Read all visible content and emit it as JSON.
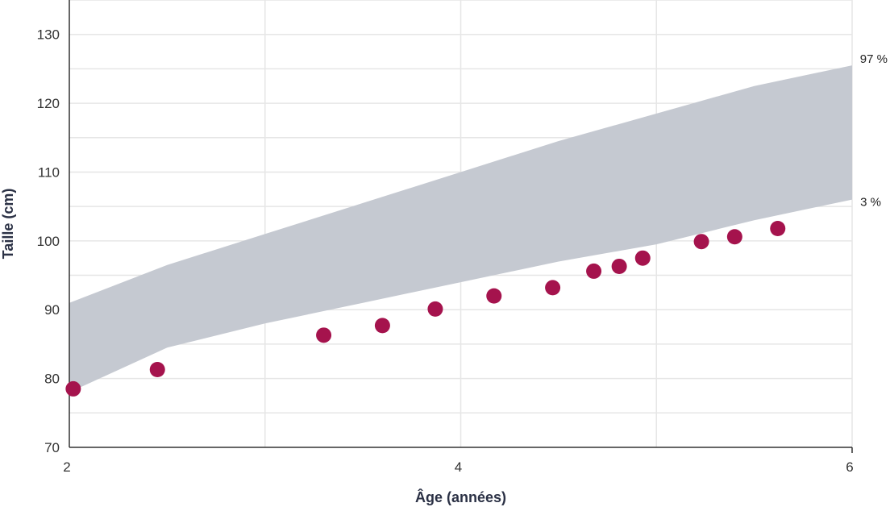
{
  "chart_data": {
    "type": "scatter",
    "title": "",
    "xlabel": "Âge (années)",
    "ylabel": "Taille (cm)",
    "xlim": [
      2,
      6
    ],
    "ylim": [
      70,
      135
    ],
    "x_ticks": [
      2,
      4,
      6
    ],
    "y_ticks": [
      70,
      80,
      90,
      100,
      110,
      120,
      130
    ],
    "grid": true,
    "colors": {
      "band": "#c5c9d1",
      "points": "#a5134d",
      "grid": "#e6e6e6",
      "axis": "#333333"
    },
    "band": {
      "upper_label": "97 %",
      "lower_label": "3 %",
      "x": [
        2,
        2.5,
        3,
        3.5,
        4,
        4.5,
        5,
        5.5,
        6
      ],
      "upper": [
        91.0,
        96.5,
        101.0,
        105.5,
        110.0,
        114.5,
        118.5,
        122.5,
        125.5
      ],
      "lower": [
        78.0,
        84.5,
        88.0,
        91.0,
        94.0,
        97.0,
        99.5,
        103.0,
        106.0
      ]
    },
    "series": [
      {
        "x": [
          2.02,
          2.45,
          3.3,
          3.6,
          3.87,
          4.17,
          4.47,
          4.68,
          4.81,
          4.93,
          5.23,
          5.4,
          5.62
        ],
        "y": [
          78.5,
          81.3,
          86.3,
          87.7,
          90.1,
          92.0,
          93.2,
          95.6,
          96.3,
          97.5,
          99.9,
          100.6,
          101.8
        ]
      }
    ]
  }
}
